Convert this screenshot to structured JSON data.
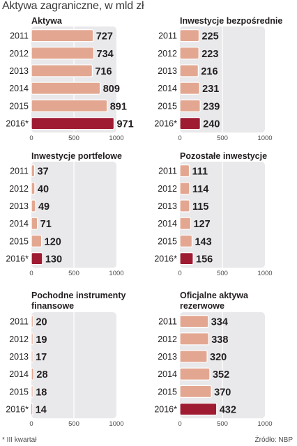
{
  "page": {
    "title": "Aktywa zagraniczne, w mld zł",
    "footnote": "* III kwartał",
    "source": "Źródło: NBP"
  },
  "colors": {
    "bar": "#e3a791",
    "bar_stroke": "#ffffff",
    "highlight": "#9e1b32",
    "panel_bg": "#e9e9ec",
    "text": "#231f20"
  },
  "chart_data": [
    {
      "type": "bar",
      "orientation": "horizontal",
      "title": [
        "Aktywa"
      ],
      "categories": [
        "2011",
        "2012",
        "2013",
        "2014",
        "2015",
        "2016*"
      ],
      "values": [
        727,
        734,
        716,
        809,
        891,
        971
      ],
      "value_labels": [
        "727",
        "734",
        "716",
        "809",
        "891",
        "971"
      ],
      "xlim": [
        0,
        1000
      ],
      "xticks": [
        "0",
        "500",
        "1000"
      ],
      "highlight_index": 5,
      "grid": true
    },
    {
      "type": "bar",
      "orientation": "horizontal",
      "title": [
        "Inwestycje bezpośrednie"
      ],
      "categories": [
        "2011",
        "2012",
        "2013",
        "2014",
        "2015",
        "2016*"
      ],
      "values": [
        225,
        223,
        216,
        231,
        239,
        240
      ],
      "value_labels": [
        "225",
        "223",
        "216",
        "231",
        "239",
        "240"
      ],
      "xlim": [
        0,
        1000
      ],
      "xticks": [
        "0",
        "500",
        "1000"
      ],
      "highlight_index": 5,
      "grid": true
    },
    {
      "type": "bar",
      "orientation": "horizontal",
      "title": [
        "Inwestycje portfelowe"
      ],
      "categories": [
        "2011",
        "2012",
        "2013",
        "2014",
        "2015",
        "2016*"
      ],
      "values": [
        37,
        40,
        49,
        71,
        120,
        130
      ],
      "value_labels": [
        "37",
        "40",
        "49",
        "71",
        "120",
        "130"
      ],
      "xlim": [
        0,
        1000
      ],
      "xticks": [
        "0",
        "500",
        "1000"
      ],
      "highlight_index": 5,
      "grid": true
    },
    {
      "type": "bar",
      "orientation": "horizontal",
      "title": [
        "Pozostałe inwestycje"
      ],
      "categories": [
        "2011",
        "2012",
        "2013",
        "2014",
        "2015",
        "2016*"
      ],
      "values": [
        111,
        114,
        115,
        127,
        143,
        156
      ],
      "value_labels": [
        "111",
        "114",
        "115",
        "127",
        "143",
        "156"
      ],
      "xlim": [
        0,
        1000
      ],
      "xticks": [
        "0",
        "500",
        "1000"
      ],
      "highlight_index": 5,
      "grid": true
    },
    {
      "type": "bar",
      "orientation": "horizontal",
      "title": [
        "Pochodne instrumenty",
        "finansowe"
      ],
      "categories": [
        "2011",
        "2012",
        "2013",
        "2014",
        "2015",
        "2016*"
      ],
      "values": [
        20,
        19,
        17,
        28,
        18,
        14
      ],
      "value_labels": [
        "20",
        "19",
        "17",
        "28",
        "18",
        "14"
      ],
      "xlim": [
        0,
        1000
      ],
      "xticks": [
        "0",
        "500",
        "1000"
      ],
      "highlight_index": 5,
      "grid": true
    },
    {
      "type": "bar",
      "orientation": "horizontal",
      "title": [
        "Oficjalne aktywa",
        "rezerwowe"
      ],
      "categories": [
        "2011",
        "2012",
        "2013",
        "2014",
        "2015",
        "2016*"
      ],
      "values": [
        334,
        338,
        320,
        352,
        370,
        432
      ],
      "value_labels": [
        "334",
        "338",
        "320",
        "352",
        "370",
        "432"
      ],
      "xlim": [
        0,
        1000
      ],
      "xticks": [
        "0",
        "500",
        "1000"
      ],
      "highlight_index": 5,
      "grid": true
    }
  ]
}
